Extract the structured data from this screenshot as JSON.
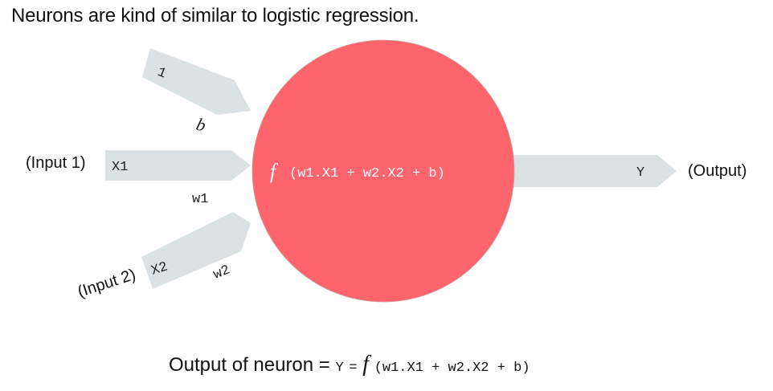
{
  "title": "Neurons are kind of similar to logistic regression.",
  "colors": {
    "neuron_fill": "#fe646c",
    "arrow_fill": "#dce1e4",
    "neuron_text": "#ffffff"
  },
  "inputs": {
    "bias": {
      "value": "1",
      "weight": "b"
    },
    "input1": {
      "caption": "(Input 1)",
      "value": "X1",
      "weight": "w1"
    },
    "input2": {
      "caption": "(Input 2)",
      "value": "X2",
      "weight": "w2"
    }
  },
  "neuron": {
    "function_symbol": "f",
    "expression": "(w1.X1 + w2.X2 + b)"
  },
  "output": {
    "value": "Y",
    "caption": "(Output)"
  },
  "formula": {
    "prefix": "Output of neuron =",
    "lhs": "Y",
    "equals": "=",
    "function_symbol": "f",
    "expression": "(w1.X1 + w2.X2 + b)"
  }
}
